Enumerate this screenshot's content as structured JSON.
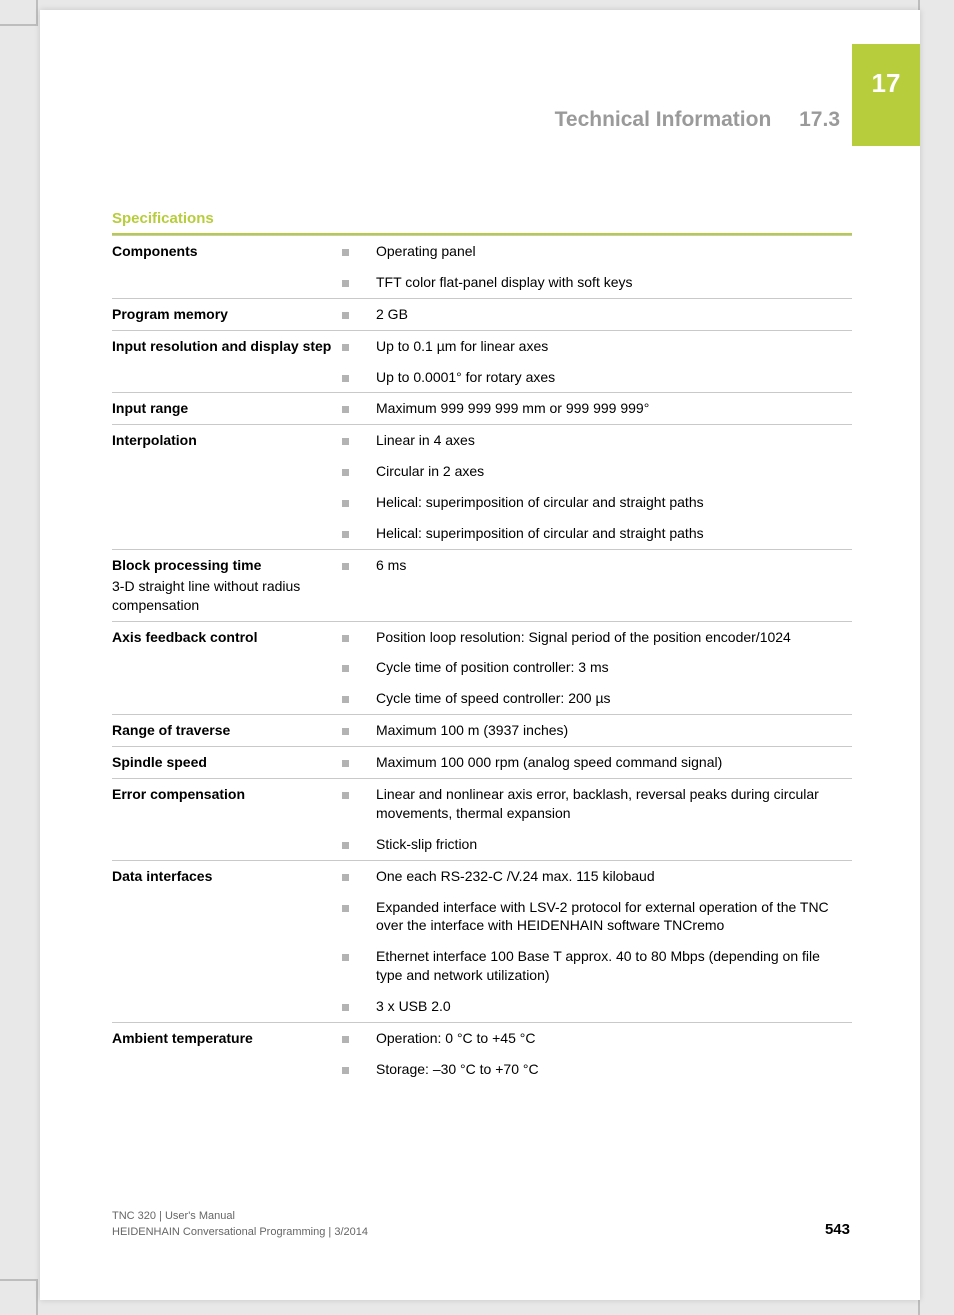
{
  "colors": {
    "accent": "#b8cd3b",
    "header_text": "#9a9a9a",
    "rule": "#b8cd3b",
    "row_border": "#c9c9c9",
    "bullet": "#b3b3b3",
    "footer_text": "#666666"
  },
  "chapter_number": "17",
  "section": {
    "title": "Technical Information",
    "number": "17.3"
  },
  "table_title": "Specifications",
  "rows": [
    {
      "label": "Components",
      "items": [
        "Operating panel",
        "TFT color flat-panel display with soft keys"
      ]
    },
    {
      "label": "Program memory",
      "items": [
        "2 GB"
      ]
    },
    {
      "label": "Input resolution and display step",
      "items": [
        "Up to 0.1 µm for linear axes",
        "Up to 0.0001° for rotary axes"
      ]
    },
    {
      "label": "Input range",
      "items": [
        "Maximum 999 999 999 mm or 999 999 999°"
      ]
    },
    {
      "label": "Interpolation",
      "items": [
        "Linear in 4 axes",
        "Circular in 2 axes",
        "Helical: superimposition of circular and straight paths",
        "Helical: superimposition of circular and straight paths"
      ]
    },
    {
      "label": "Block processing time",
      "sublabel": "3-D straight line without radius compensation",
      "items": [
        "6 ms"
      ]
    },
    {
      "label": "Axis feedback control",
      "items": [
        "Position loop resolution: Signal period of the position encoder/1024",
        "Cycle time of position controller: 3 ms",
        "Cycle time of speed controller: 200 µs"
      ]
    },
    {
      "label": "Range of traverse",
      "items": [
        "Maximum 100 m (3937 inches)"
      ]
    },
    {
      "label": "Spindle speed",
      "items": [
        "Maximum 100 000 rpm (analog speed command signal)"
      ]
    },
    {
      "label": "Error compensation",
      "items": [
        "Linear and nonlinear axis error, backlash, reversal peaks during circular movements, thermal expansion",
        "Stick-slip friction"
      ]
    },
    {
      "label": "Data interfaces",
      "items": [
        "One each RS-232-C /V.24 max. 115 kilobaud",
        "Expanded interface with LSV-2 protocol for external operation of the TNC over the interface with HEIDENHAIN software TNCremo",
        "Ethernet interface 100 Base T approx. 40 to 80 Mbps (depending on file type and network utilization)",
        "3 x USB 2.0"
      ]
    },
    {
      "label": "Ambient temperature",
      "items": [
        "Operation: 0 °C to +45 °C",
        "Storage: –30 °C to +70 °C"
      ]
    }
  ],
  "footer": {
    "line1": "TNC 320 | User's Manual",
    "line2": "HEIDENHAIN Conversational Programming | 3/2014",
    "page_number": "543"
  }
}
